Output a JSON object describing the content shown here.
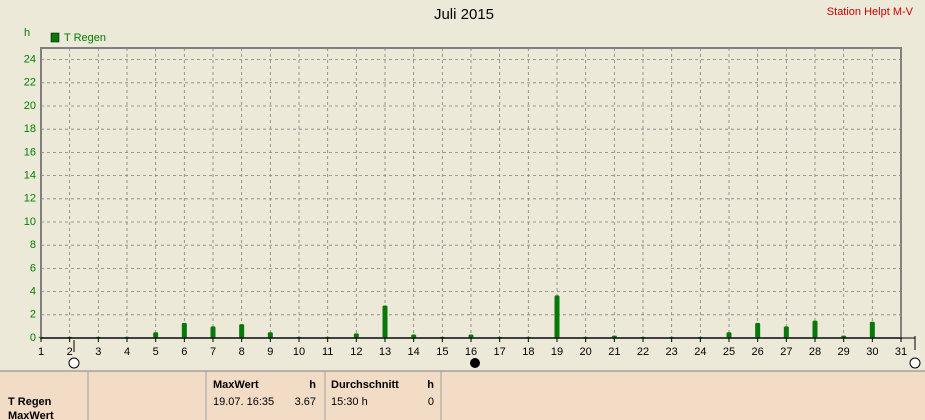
{
  "chart_data": {
    "type": "bar",
    "title": "Juli 2015",
    "subtitle": "Station Helpt M-V",
    "y_label": "h",
    "x": [
      1,
      2,
      3,
      4,
      5,
      6,
      7,
      8,
      9,
      10,
      11,
      12,
      13,
      14,
      15,
      16,
      17,
      18,
      19,
      20,
      21,
      22,
      23,
      24,
      25,
      26,
      27,
      28,
      29,
      30
    ],
    "series": [
      {
        "name": "T Regen",
        "color": "#087808",
        "values": [
          0.1,
          0.1,
          0.1,
          0.1,
          0.5,
          1.3,
          1.0,
          1.2,
          0.5,
          0.1,
          0.1,
          0.4,
          2.8,
          0.3,
          0.1,
          0.3,
          0.1,
          0.1,
          3.67,
          0.1,
          0.2,
          0.1,
          0.1,
          0.1,
          0.5,
          1.3,
          1.0,
          1.5,
          0.2,
          1.4
        ]
      }
    ],
    "xlim": [
      1,
      31
    ],
    "xticks": [
      1,
      2,
      3,
      4,
      5,
      6,
      7,
      8,
      9,
      10,
      11,
      12,
      13,
      14,
      15,
      16,
      17,
      18,
      19,
      20,
      21,
      22,
      23,
      24,
      25,
      26,
      27,
      28,
      29,
      30,
      31
    ],
    "ylim": [
      0,
      25
    ],
    "yticks": [
      0,
      2,
      4,
      6,
      8,
      10,
      12,
      14,
      16,
      18,
      20,
      22,
      24
    ],
    "grid": true
  },
  "panel": {
    "series_name": "T Regen",
    "row_label": "MaxWert",
    "max": {
      "header": "MaxWert",
      "unit": "h",
      "time": "19.07.  16:35",
      "value": 3.67
    },
    "avg": {
      "header": "Durchschnitt",
      "unit": "h",
      "time": "15:30 h",
      "value": 0
    }
  }
}
